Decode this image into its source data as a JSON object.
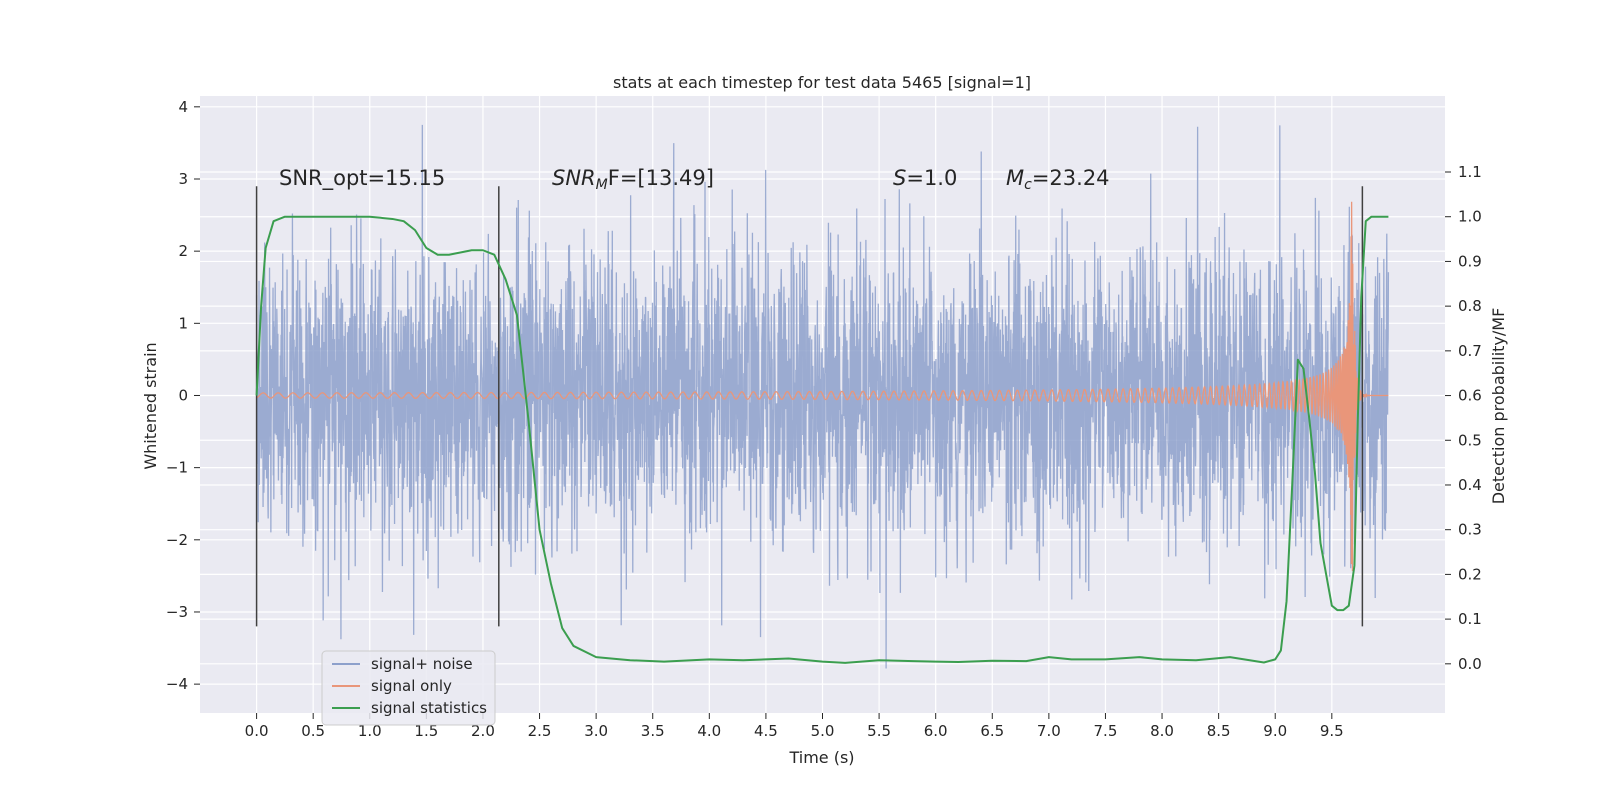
{
  "chart_data": {
    "type": "line",
    "title": "stats at each timestep for test data 5465 [signal=1]",
    "xlabel": "Time (s)",
    "ylabel": "Whitened strain",
    "y2label": "Detection probability/MF",
    "xlim": [
      -0.5,
      10.5
    ],
    "ylim": [
      -4.4,
      4.15
    ],
    "y2lim": [
      -0.11,
      1.27
    ],
    "x_ticks": [
      "0.0",
      "0.5",
      "1.0",
      "1.5",
      "2.0",
      "2.5",
      "3.0",
      "3.5",
      "4.0",
      "4.5",
      "5.0",
      "5.5",
      "6.0",
      "6.5",
      "7.0",
      "7.5",
      "8.0",
      "8.5",
      "9.0",
      "9.5"
    ],
    "y_ticks": [
      "4",
      "3",
      "2",
      "1",
      "0",
      "−1",
      "−2",
      "−3",
      "−4"
    ],
    "y2_ticks": [
      "1.1",
      "1.0",
      "0.9",
      "0.8",
      "0.7",
      "0.6",
      "0.5",
      "0.4",
      "0.3",
      "0.2",
      "0.1",
      "0.0"
    ],
    "grid": true,
    "legend_placement": "lower-left",
    "colors": {
      "background": "#eaeaf2",
      "grid": "#ffffff",
      "noise": "#8da0cb",
      "signal": "#e9967a",
      "statistics": "#3b9e4f",
      "vline": "#404040"
    },
    "annotations": {
      "snr_opt": "SNR_opt=15.15",
      "snr_mf_sym": "SNR",
      "snr_mf_sub": "M",
      "snr_mf_rest": "F=[13.49]",
      "s_sym": "S",
      "s_rest": "=1.0",
      "mc_sym": "M",
      "mc_sub": "c",
      "mc_rest": "=23.24"
    },
    "vertical_lines_x": [
      0.0,
      2.14,
      9.77
    ],
    "vertical_lines_yrange": [
      -3.2,
      2.9
    ],
    "series": [
      {
        "name": "signal+ noise",
        "kind": "noise",
        "x_range": [
          0.0,
          10.0
        ],
        "amplitude_std": 1.0,
        "peak_range": [
          -4.0,
          3.75
        ]
      },
      {
        "name": "signal only",
        "kind": "chirp",
        "x_range": [
          0.0,
          10.0
        ],
        "merger_time": 9.68,
        "peak_amplitude": 2.9
      },
      {
        "name": "signal statistics",
        "kind": "curve",
        "axis": "right",
        "x": [
          0.0,
          0.04,
          0.08,
          0.15,
          0.25,
          0.5,
          1.0,
          1.2,
          1.3,
          1.4,
          1.5,
          1.6,
          1.7,
          1.8,
          1.9,
          2.0,
          2.1,
          2.2,
          2.3,
          2.4,
          2.5,
          2.6,
          2.7,
          2.8,
          3.0,
          3.3,
          3.6,
          4.0,
          4.3,
          4.7,
          5.0,
          5.2,
          5.5,
          5.8,
          6.0,
          6.2,
          6.5,
          6.8,
          7.0,
          7.2,
          7.5,
          7.8,
          8.0,
          8.3,
          8.6,
          8.9,
          9.0,
          9.05,
          9.1,
          9.15,
          9.2,
          9.25,
          9.3,
          9.35,
          9.4,
          9.45,
          9.5,
          9.55,
          9.6,
          9.65,
          9.7,
          9.73,
          9.76,
          9.8,
          9.85,
          9.9,
          9.95,
          10.0
        ],
        "y": [
          0.6,
          0.8,
          0.93,
          0.99,
          1.0,
          1.0,
          1.0,
          0.995,
          0.99,
          0.97,
          0.93,
          0.915,
          0.915,
          0.92,
          0.925,
          0.925,
          0.915,
          0.86,
          0.78,
          0.55,
          0.3,
          0.18,
          0.08,
          0.04,
          0.015,
          0.008,
          0.005,
          0.01,
          0.008,
          0.012,
          0.005,
          0.002,
          0.008,
          0.006,
          0.005,
          0.004,
          0.007,
          0.006,
          0.015,
          0.01,
          0.01,
          0.015,
          0.01,
          0.008,
          0.015,
          0.003,
          0.01,
          0.03,
          0.14,
          0.4,
          0.68,
          0.66,
          0.55,
          0.43,
          0.27,
          0.2,
          0.13,
          0.12,
          0.12,
          0.13,
          0.22,
          0.55,
          0.82,
          0.99,
          1.0,
          1.0,
          1.0,
          1.0
        ]
      }
    ]
  }
}
